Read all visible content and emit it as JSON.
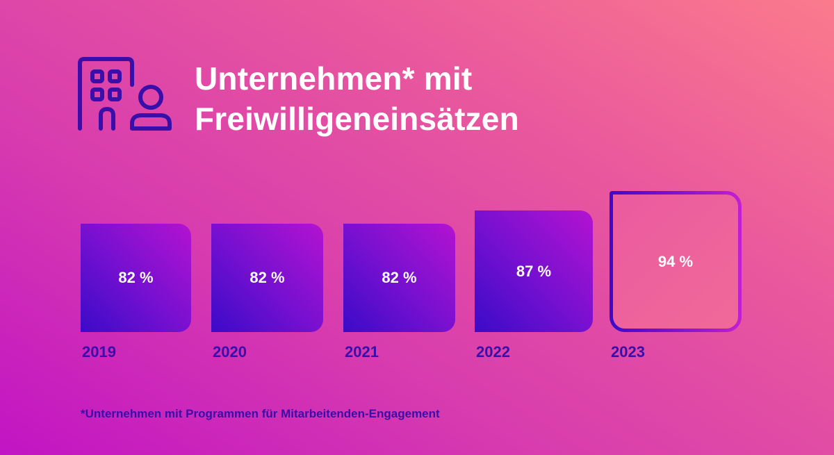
{
  "title_lines": [
    "Unternehmen* mit",
    "Freiwilligeneinsätzen"
  ],
  "icon": "building-person-icon",
  "colors": {
    "accent": "#3a0ea8",
    "bar_start": "#3a0bc8",
    "bar_end": "#b313d0",
    "text": "#ffffff"
  },
  "chart_data": {
    "type": "bar",
    "title": "Unternehmen* mit Freiwilligeneinsätzen",
    "categories": [
      "2019",
      "2020",
      "2021",
      "2022",
      "2023"
    ],
    "values": [
      82,
      82,
      82,
      87,
      94
    ],
    "value_labels": [
      "82 %",
      "82 %",
      "82 %",
      "87 %",
      "94 %"
    ],
    "highlight": "2023",
    "unit": "%",
    "xlabel": "",
    "ylabel": "",
    "grid": false
  },
  "footnote": "*Unternehmen mit Programmen für Mitarbeitenden-Engagement"
}
